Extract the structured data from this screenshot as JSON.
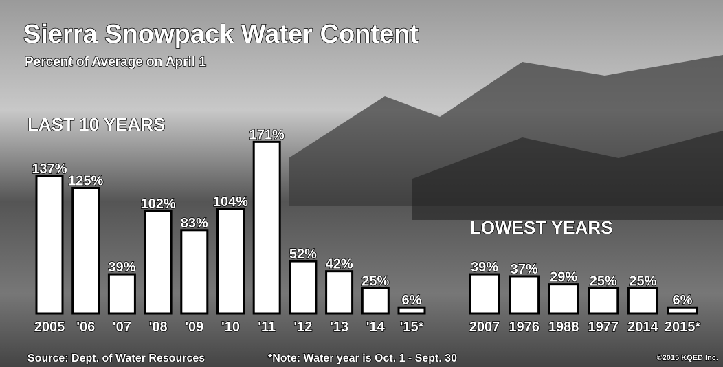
{
  "title": "Sierra Snowpack Water Content",
  "subtitle": "Percent of Average on April 1",
  "source": "Source: Dept. of Water Resources",
  "note": "*Note: Water year is Oct. 1 - Sept. 30",
  "copyright": "©2015 KQED Inc.",
  "chart_data": [
    {
      "type": "bar",
      "title": "LAST 10 YEARS",
      "color": "#ffffff",
      "categories": [
        "2005",
        "'06",
        "'07",
        "'08",
        "'09",
        "'10",
        "'11",
        "'12",
        "'13",
        "'14",
        "'15*"
      ],
      "values": [
        137,
        125,
        39,
        102,
        83,
        104,
        171,
        52,
        42,
        25,
        6
      ],
      "value_labels": [
        "137%",
        "125%",
        "39%",
        "102%",
        "83%",
        "104%",
        "171%",
        "52%",
        "42%",
        "25%",
        "6%"
      ]
    },
    {
      "type": "bar",
      "title": "LOWEST YEARS",
      "color": "#ffffff",
      "categories": [
        "2007",
        "1976",
        "1988",
        "1977",
        "2014",
        "2015*"
      ],
      "values": [
        39,
        37,
        29,
        25,
        25,
        6
      ],
      "value_labels": [
        "39%",
        "37%",
        "29%",
        "25%",
        "25%",
        "6%"
      ]
    }
  ]
}
